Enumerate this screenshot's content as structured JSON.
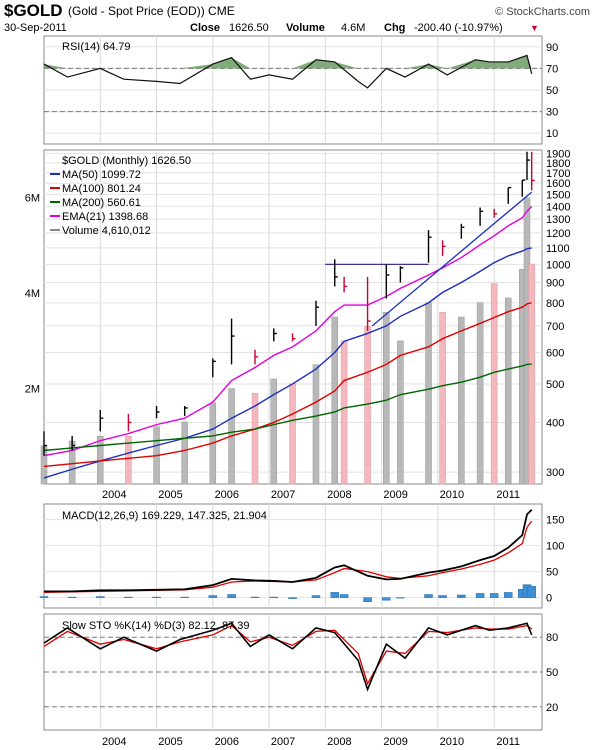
{
  "header": {
    "symbol": "$GOLD",
    "description": "(Gold - Spot Price (EOD)) CME",
    "copyright": "© StockCharts.com",
    "date": "30-Sep-2011",
    "close_label": "Close",
    "close_value": "1626.50",
    "volume_label": "Volume",
    "volume_value": "4.6M",
    "chg_label": "Chg",
    "chg_value": "-200.40 (-10.97%)",
    "chg_arrow": "▼",
    "down_color": "#cc0033"
  },
  "chart_data": [
    {
      "panel": "rsi",
      "type": "line",
      "legend": "RSI(14) 64.79",
      "y_ticks": [
        90,
        70,
        50,
        30,
        10
      ],
      "ylim": [
        0,
        100
      ],
      "reference_lines": [
        70,
        30
      ],
      "fill_above": 70,
      "fill_color": "#6a9e62",
      "x": [
        "2003-01",
        "2003-06",
        "2004-01",
        "2004-06",
        "2005-01",
        "2005-06",
        "2006-01",
        "2006-05",
        "2006-09",
        "2007-01",
        "2007-06",
        "2007-11",
        "2008-03",
        "2008-08",
        "2008-10",
        "2009-02",
        "2009-06",
        "2009-11",
        "2010-03",
        "2010-09",
        "2010-12",
        "2011-04",
        "2011-08",
        "2011-09"
      ],
      "values": [
        74,
        62,
        70,
        60,
        58,
        56,
        74,
        80,
        60,
        64,
        60,
        78,
        76,
        58,
        52,
        70,
        62,
        74,
        64,
        78,
        76,
        76,
        82,
        65
      ]
    },
    {
      "panel": "price",
      "type": "ohlc",
      "legend_title": "$GOLD (Monthly) 1626.50",
      "legend_items": [
        {
          "label": "MA(50) 1099.72",
          "color": "#1a2fbf"
        },
        {
          "label": "MA(100) 801.24",
          "color": "#e00000"
        },
        {
          "label": "MA(200) 560.61",
          "color": "#006600"
        },
        {
          "label": "EMA(21) 1398.68",
          "color": "#e000e0"
        },
        {
          "label": "Volume 4,610,012",
          "color": "#888888"
        }
      ],
      "x_labels": [
        "2004",
        "2005",
        "2006",
        "2007",
        "2008",
        "2009",
        "2010",
        "2011"
      ],
      "y_ticks": [
        1900,
        1800,
        1700,
        1600,
        1500,
        1400,
        1300,
        1200,
        1100,
        1000,
        900,
        800,
        700,
        600,
        500,
        400,
        300
      ],
      "ylim": [
        280,
        1940
      ],
      "y_scale": "log",
      "volume_ticks": [
        "6M",
        "4M",
        "2M"
      ],
      "volume_ylim": [
        0,
        7000000
      ],
      "x": [
        "2003-01",
        "2003-07",
        "2004-01",
        "2004-07",
        "2005-01",
        "2005-07",
        "2006-01",
        "2006-05",
        "2006-10",
        "2007-02",
        "2007-06",
        "2007-11",
        "2008-03",
        "2008-05",
        "2008-10",
        "2009-02",
        "2009-05",
        "2009-11",
        "2010-02",
        "2010-06",
        "2010-10",
        "2011-01",
        "2011-04",
        "2011-07",
        "2011-08",
        "2011-09"
      ],
      "close": [
        350,
        350,
        410,
        400,
        425,
        435,
        570,
        660,
        585,
        670,
        650,
        780,
        930,
        880,
        720,
        940,
        980,
        1170,
        1110,
        1240,
        1360,
        1340,
        1560,
        1630,
        1830,
        1626
      ],
      "high": [
        380,
        370,
        430,
        420,
        440,
        440,
        580,
        730,
        610,
        690,
        670,
        810,
        1030,
        930,
        930,
        1000,
        990,
        1220,
        1150,
        1265,
        1390,
        1380,
        1560,
        1630,
        1920,
        1920
      ],
      "low": [
        330,
        340,
        380,
        380,
        410,
        415,
        520,
        560,
        560,
        640,
        640,
        700,
        880,
        850,
        680,
        820,
        900,
        1010,
        1050,
        1160,
        1250,
        1310,
        1420,
        1480,
        1630,
        1535
      ],
      "ma50": [
        290,
        305,
        320,
        335,
        350,
        365,
        385,
        410,
        440,
        470,
        500,
        545,
        600,
        640,
        670,
        700,
        740,
        800,
        850,
        900,
        960,
        1010,
        1050,
        1080,
        1095,
        1100
      ],
      "ma100": [
        310,
        315,
        320,
        325,
        330,
        340,
        355,
        370,
        385,
        400,
        420,
        450,
        480,
        510,
        535,
        560,
        590,
        620,
        650,
        680,
        710,
        735,
        760,
        780,
        795,
        801
      ],
      "ma200": [
        340,
        345,
        350,
        355,
        360,
        365,
        370,
        378,
        385,
        395,
        405,
        415,
        425,
        435,
        445,
        455,
        470,
        485,
        495,
        505,
        520,
        535,
        545,
        555,
        560,
        561
      ],
      "ema21": [
        330,
        340,
        360,
        375,
        395,
        410,
        450,
        510,
        550,
        590,
        620,
        680,
        760,
        790,
        790,
        830,
        870,
        940,
        980,
        1040,
        1120,
        1180,
        1250,
        1310,
        1360,
        1399
      ],
      "volume": [
        800000,
        900000,
        1000000,
        1000000,
        1200000,
        1300000,
        1700000,
        2000000,
        1900000,
        2200000,
        2100000,
        2500000,
        3500000,
        3000000,
        3300000,
        3600000,
        3000000,
        3800000,
        3600000,
        3500000,
        3800000,
        4200000,
        3900000,
        4500000,
        6000000,
        4610012
      ],
      "annotation_lines": [
        {
          "label": "resistance",
          "x": [
            "2008-01",
            "2009-11"
          ],
          "y": [
            1000,
            1000
          ],
          "color": "#4a2c8a"
        },
        {
          "label": "uptrend",
          "x": [
            "2008-11",
            "2011-09"
          ],
          "y": [
            700,
            1520
          ],
          "color": "#1a2fbf"
        }
      ]
    },
    {
      "panel": "macd",
      "type": "line",
      "legend": "MACD(12,26,9) 169.229, 147.325, 21.904",
      "legend_values": [
        "169.229",
        "147.325",
        "21.904"
      ],
      "y_ticks": [
        150,
        100,
        50,
        0
      ],
      "ylim": [
        -20,
        180
      ],
      "x": [
        "2003-01",
        "2003-07",
        "2004-01",
        "2004-07",
        "2005-01",
        "2005-07",
        "2006-01",
        "2006-05",
        "2006-10",
        "2007-02",
        "2007-06",
        "2007-11",
        "2008-03",
        "2008-05",
        "2008-10",
        "2009-02",
        "2009-05",
        "2009-11",
        "2010-02",
        "2010-06",
        "2010-10",
        "2011-01",
        "2011-04",
        "2011-07",
        "2011-08",
        "2011-09"
      ],
      "macd": [
        12,
        12,
        14,
        14,
        15,
        16,
        24,
        36,
        33,
        32,
        30,
        38,
        58,
        62,
        42,
        35,
        36,
        48,
        52,
        60,
        72,
        80,
        96,
        120,
        160,
        169
      ],
      "signal": [
        10,
        11,
        12,
        13,
        14,
        15,
        20,
        30,
        32,
        31,
        30,
        34,
        48,
        56,
        50,
        40,
        37,
        42,
        48,
        55,
        64,
        72,
        86,
        104,
        135,
        147
      ],
      "histogram": [
        2,
        1,
        2,
        1,
        1,
        1,
        4,
        6,
        1,
        1,
        0,
        4,
        10,
        6,
        -8,
        -5,
        -1,
        6,
        4,
        5,
        8,
        8,
        10,
        16,
        25,
        22
      ]
    },
    {
      "panel": "stochastic",
      "type": "line",
      "legend": "Slow STO %K(14) %D(3) 82.12, 87.39",
      "legend_values": [
        "82.12",
        "87.39"
      ],
      "y_ticks": [
        80,
        50,
        20
      ],
      "ylim": [
        0,
        100
      ],
      "reference_lines": [
        80,
        50,
        20
      ],
      "x": [
        "2003-01",
        "2003-06",
        "2004-01",
        "2004-06",
        "2005-01",
        "2005-06",
        "2006-01",
        "2006-05",
        "2006-09",
        "2007-01",
        "2007-06",
        "2007-11",
        "2008-03",
        "2008-08",
        "2008-10",
        "2009-02",
        "2009-06",
        "2009-11",
        "2010-03",
        "2010-09",
        "2010-12",
        "2011-04",
        "2011-08",
        "2011-09"
      ],
      "k": [
        75,
        88,
        70,
        80,
        68,
        78,
        86,
        92,
        72,
        82,
        70,
        88,
        84,
        60,
        35,
        74,
        62,
        88,
        82,
        90,
        86,
        88,
        92,
        82
      ],
      "d": [
        72,
        85,
        74,
        78,
        70,
        76,
        82,
        90,
        76,
        80,
        73,
        85,
        86,
        66,
        40,
        68,
        66,
        85,
        84,
        88,
        87,
        87,
        90,
        87
      ]
    }
  ]
}
